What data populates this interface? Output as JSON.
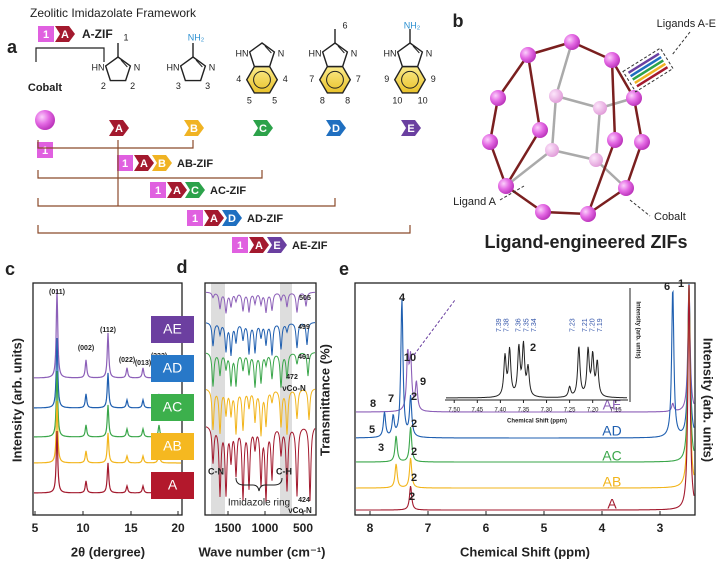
{
  "panel_a": {
    "label": "a",
    "title": "Zeolitic Imidazolate Framework",
    "metal": "Cobalt",
    "metal_tag": "1",
    "single": "A-ZIF",
    "ligands": [
      {
        "tag": "A",
        "atoms": [
          "1",
          "HN",
          "N",
          "2",
          "2"
        ]
      },
      {
        "tag": "B",
        "atoms": [
          "NH₂",
          "HN",
          "N",
          "3",
          "3"
        ]
      },
      {
        "tag": "C",
        "atoms": [
          "HN",
          "N",
          "4",
          "4",
          "5",
          "5"
        ]
      },
      {
        "tag": "D",
        "atoms": [
          "6",
          "HN",
          "N",
          "7",
          "7",
          "8",
          "8"
        ]
      },
      {
        "tag": "E",
        "atoms": [
          "NH₂",
          "HN",
          "N",
          "9",
          "9",
          "10",
          "10"
        ]
      }
    ],
    "mixed": [
      "AB-ZIF",
      "AC-ZIF",
      "AD-ZIF",
      "AE-ZIF"
    ]
  },
  "panel_b": {
    "label": "b",
    "ligands": "Ligands A-E",
    "ligand": "Ligand A",
    "metal": "Cobalt",
    "title": "Ligand-engineered ZIFs"
  },
  "samples": [
    "AE",
    "AD",
    "AC",
    "AB",
    "A"
  ],
  "panel_c": {
    "label": "c",
    "x_title": "2θ (dergree)",
    "y_title": "Intensity (arb. units)",
    "xticks": [
      "5",
      "10",
      "15",
      "20"
    ],
    "peaks": [
      "(011)",
      "(002)",
      "(112)",
      "(022)",
      "(013)",
      "(222)"
    ]
  },
  "panel_d": {
    "label": "d",
    "x_title": "Wave number (cm⁻¹)",
    "y_title": "Transmittance (%)",
    "xticks": [
      "1500",
      "1000",
      "500"
    ],
    "bands": [
      "505",
      "499",
      "461",
      "472",
      "424"
    ],
    "co_n": "νCo-N",
    "cn": "C-N",
    "ch": "C-H",
    "ring": "Imidazole ring"
  },
  "panel_e": {
    "label": "e",
    "x_title": "Chemical Shift (ppm)",
    "y_title": "Intensity (arb. units)",
    "xticks": [
      "8",
      "7",
      "6",
      "5",
      "4",
      "3"
    ],
    "peaks": [
      "4",
      "10",
      "9",
      "8",
      "7",
      "5",
      "3",
      "2",
      "2",
      "2",
      "2",
      "2",
      "6",
      "1"
    ],
    "inset": {
      "x_title": "Chemical Shift (ppm)",
      "y_title": "Intensity (arb. units)",
      "xticks": [
        "7.50",
        "7.45",
        "7.40",
        "7.35",
        "7.30",
        "7.25",
        "7.20",
        "7.15"
      ],
      "peaks": [
        "7.39",
        "7.38",
        "7.36",
        "7.35",
        "7.34",
        "7.23",
        "7.21",
        "7.20",
        "7.19"
      ],
      "label": "2"
    }
  }
}
